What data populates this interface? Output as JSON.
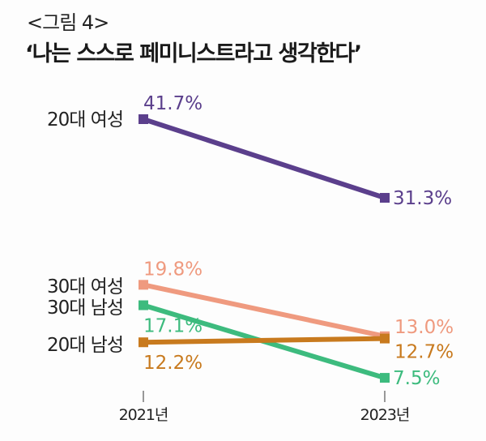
{
  "header": {
    "figure_label": "<그림 4>",
    "title": "‘나는 스스로 페미니스트라고 생각한다’"
  },
  "chart_data": {
    "type": "line",
    "title": "‘나는 스스로 페미니스트라고 생각한다’",
    "subtitle": "<그림 4>",
    "xlabel": "",
    "ylabel": "",
    "categories": [
      "2021년",
      "2023년"
    ],
    "ylim": [
      0,
      45
    ],
    "grid": false,
    "legend": "left-inline",
    "series": [
      {
        "name": "20대 여성",
        "values": [
          41.7,
          31.3
        ],
        "labels": [
          "41.7%",
          "31.3%"
        ],
        "color": "#5b3f8c"
      },
      {
        "name": "30대 여성",
        "values": [
          19.8,
          13.0
        ],
        "labels": [
          "19.8%",
          "13.0%"
        ],
        "color": "#ef9a7f"
      },
      {
        "name": "30대 남성",
        "values": [
          17.1,
          7.5
        ],
        "labels": [
          "17.1%",
          "7.5%"
        ],
        "color": "#3dbb7e"
      },
      {
        "name": "20대 남성",
        "values": [
          12.2,
          12.7
        ],
        "labels": [
          "12.2%",
          "12.7%"
        ],
        "color": "#c87a1e"
      }
    ]
  }
}
